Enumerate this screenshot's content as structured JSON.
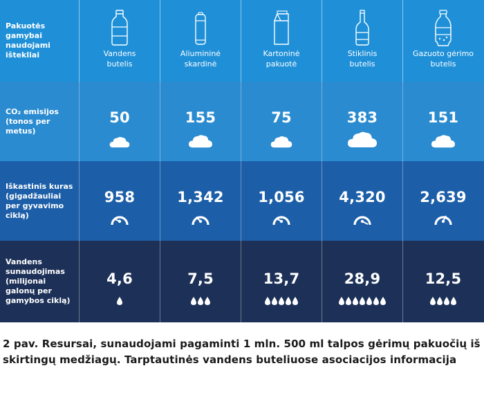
{
  "header_label": "Pakuotės gamybai naudojami ištekliai",
  "row_labels": {
    "co2": "CO₂ emisijos (tonos per metus)",
    "fuel": "Iškastinis kuras (gigadžauliai per gyvavimo ciklą)",
    "water": "Vandens sunaudojimas (milijonai galonų per gamybos ciklą)"
  },
  "packages": [
    {
      "label_line1": "Vandens",
      "label_line2": "butelis",
      "icon": "water-bottle-icon"
    },
    {
      "label_line1": "Aliumininė",
      "label_line2": "skardinė",
      "icon": "aluminium-can-icon"
    },
    {
      "label_line1": "Kartoninė",
      "label_line2": "pakuotė",
      "icon": "carton-icon"
    },
    {
      "label_line1": "Stiklinis",
      "label_line2": "butelis",
      "icon": "glass-bottle-icon"
    },
    {
      "label_line1": "Gazuoto gėrimo",
      "label_line2": "butelis",
      "icon": "soda-bottle-icon"
    }
  ],
  "chart_data": {
    "type": "table",
    "categories": [
      "Vandens butelis",
      "Aliumininė skardinė",
      "Kartoninė pakuotė",
      "Stiklinis butelis",
      "Gazuoto gėrimo butelis"
    ],
    "series": [
      {
        "name": "CO₂ emisijos (tonos per metus)",
        "values": [
          50,
          155,
          75,
          383,
          151
        ],
        "display": [
          "50",
          "155",
          "75",
          "383",
          "151"
        ]
      },
      {
        "name": "Iškastinis kuras (gigadžauliai per gyvavimo ciklą)",
        "values": [
          958,
          1342,
          1056,
          4320,
          2639
        ],
        "display": [
          "958",
          "1,342",
          "1,056",
          "4,320",
          "2,639"
        ]
      },
      {
        "name": "Vandens sunaudojimas (milijonai galonų per gamybos ciklą)",
        "values": [
          4.6,
          7.5,
          13.7,
          28.9,
          12.5
        ],
        "display": [
          "4,6",
          "7,5",
          "13,7",
          "28,9",
          "12,5"
        ],
        "drop_counts": [
          1,
          3,
          5,
          7,
          4
        ]
      }
    ]
  },
  "colors": {
    "header_row": "#1f90d8",
    "co2_row": "#2b8bd0",
    "fuel_row": "#1c5fa8",
    "water_row": "#1d3158",
    "caption_text": "#1a1a1a"
  },
  "caption": "2 pav. Resursai, sunaudojami pagaminti 1 mln. 500 ml talpos gėrimų pakuočių iš skirtingų medžiagų. Tarptautinės vandens buteliuose asociacijos informacija"
}
